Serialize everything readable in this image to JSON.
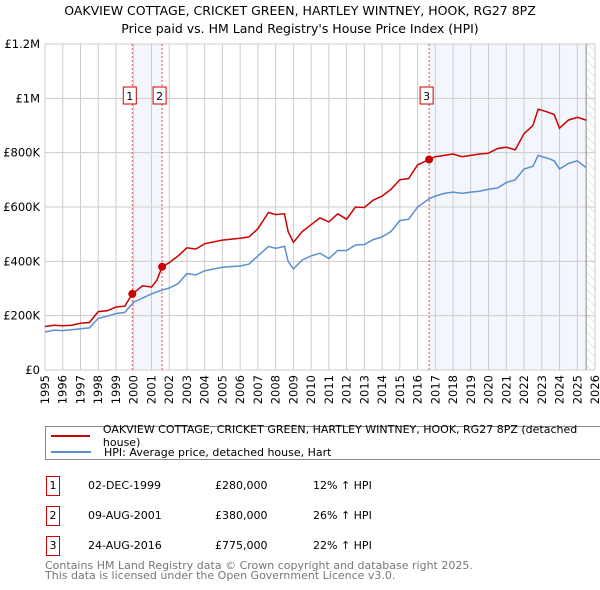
{
  "chart_data": {
    "type": "line",
    "title": "OAKVIEW COTTAGE, CRICKET GREEN, HARTLEY WINTNEY, HOOK, RG27 8PZ",
    "subtitle": "Price paid vs. HM Land Registry's House Price Index (HPI)",
    "xlim": [
      1995,
      2026
    ],
    "ylim": [
      0,
      1200000
    ],
    "x_ticks": [
      "1995",
      "1996",
      "1997",
      "1998",
      "1999",
      "2000",
      "2001",
      "2002",
      "2003",
      "2004",
      "2005",
      "2006",
      "2007",
      "2008",
      "2009",
      "2010",
      "2011",
      "2012",
      "2013",
      "2014",
      "2015",
      "2016",
      "2017",
      "2018",
      "2019",
      "2020",
      "2021",
      "2022",
      "2023",
      "2024",
      "2025",
      "2026"
    ],
    "y_ticks": [
      {
        "v": 0,
        "label": "£0"
      },
      {
        "v": 200000,
        "label": "£200K"
      },
      {
        "v": 400000,
        "label": "£400K"
      },
      {
        "v": 600000,
        "label": "£600K"
      },
      {
        "v": 800000,
        "label": "£800K"
      },
      {
        "v": 1000000,
        "label": "£1M"
      },
      {
        "v": 1200000,
        "label": "£1.2M"
      }
    ],
    "grid": true,
    "series": [
      {
        "name": "OAKVIEW COTTAGE, CRICKET GREEN, HARTLEY WINTNEY, HOOK, RG27 8PZ (detached house)",
        "color": "#cc0000",
        "x": [
          1995,
          1995.5,
          1996,
          1996.5,
          1997,
          1997.5,
          1998,
          1998.5,
          1999,
          1999.5,
          1999.92,
          2000.5,
          2001,
          2001.3,
          2001.6,
          2002,
          2002.5,
          2003,
          2003.5,
          2004,
          2005,
          2006,
          2006.5,
          2007,
          2007.6,
          2008,
          2008.5,
          2008.7,
          2009,
          2009.5,
          2010,
          2010.5,
          2011,
          2011.5,
          2012,
          2012.5,
          2013,
          2013.5,
          2014,
          2014.5,
          2015,
          2015.5,
          2016,
          2016.65,
          2017,
          2017.5,
          2018,
          2018.5,
          2019,
          2019.5,
          2020,
          2020.5,
          2021,
          2021.5,
          2022,
          2022.5,
          2022.8,
          2023.3,
          2023.7,
          2024,
          2024.5,
          2025,
          2025.5
        ],
        "y": [
          160000,
          165000,
          163000,
          165000,
          172000,
          175000,
          215000,
          218000,
          232000,
          235000,
          280000,
          310000,
          305000,
          330000,
          380000,
          395000,
          420000,
          450000,
          445000,
          465000,
          478000,
          485000,
          490000,
          520000,
          580000,
          572000,
          575000,
          510000,
          470000,
          510000,
          535000,
          560000,
          545000,
          575000,
          555000,
          600000,
          598000,
          625000,
          640000,
          665000,
          700000,
          705000,
          755000,
          775000,
          785000,
          790000,
          795000,
          785000,
          790000,
          795000,
          798000,
          815000,
          820000,
          810000,
          870000,
          900000,
          960000,
          950000,
          940000,
          890000,
          920000,
          930000,
          920000
        ]
      },
      {
        "name": "HPI: Average price, detached house, Hart",
        "color": "#5b8fd0",
        "x": [
          1995,
          1995.5,
          1996,
          1996.5,
          1997,
          1997.5,
          1998,
          1998.5,
          1999,
          1999.5,
          2000,
          2000.5,
          2001,
          2001.5,
          2002,
          2002.5,
          2003,
          2003.5,
          2004,
          2005,
          2006,
          2006.5,
          2007,
          2007.6,
          2008,
          2008.5,
          2008.7,
          2009,
          2009.5,
          2010,
          2010.5,
          2011,
          2011.5,
          2012,
          2012.5,
          2013,
          2013.5,
          2014,
          2014.5,
          2015,
          2015.5,
          2016,
          2016.65,
          2017,
          2017.5,
          2018,
          2018.5,
          2019,
          2019.5,
          2020,
          2020.5,
          2021,
          2021.5,
          2022,
          2022.5,
          2022.8,
          2023.3,
          2023.7,
          2024,
          2024.5,
          2025,
          2025.5
        ],
        "y": [
          140000,
          147000,
          145000,
          148000,
          152000,
          155000,
          190000,
          198000,
          208000,
          212000,
          250000,
          265000,
          280000,
          292000,
          302000,
          318000,
          355000,
          350000,
          365000,
          378000,
          383000,
          390000,
          420000,
          455000,
          448000,
          455000,
          400000,
          372000,
          405000,
          420000,
          430000,
          410000,
          440000,
          440000,
          460000,
          462000,
          480000,
          490000,
          510000,
          550000,
          555000,
          600000,
          630000,
          640000,
          650000,
          655000,
          650000,
          655000,
          658000,
          665000,
          670000,
          690000,
          700000,
          740000,
          750000,
          790000,
          780000,
          770000,
          740000,
          760000,
          770000,
          745000
        ]
      }
    ],
    "sales": [
      {
        "id": "1",
        "x": 1999.92,
        "y": 280000,
        "date": "02-DEC-1999",
        "price": "£280,000",
        "hpi": "12% ↑ HPI"
      },
      {
        "id": "2",
        "x": 2001.6,
        "y": 380000,
        "date": "09-AUG-2001",
        "price": "£380,000",
        "hpi": "26% ↑ HPI"
      },
      {
        "id": "3",
        "x": 2016.65,
        "y": 775000,
        "date": "24-AUG-2016",
        "price": "£775,000",
        "hpi": "22% ↑ HPI"
      }
    ],
    "forecast_start": 2025.5
  },
  "legend": {
    "property": "OAKVIEW COTTAGE, CRICKET GREEN, HARTLEY WINTNEY, HOOK, RG27 8PZ (detached house)",
    "hpi": "HPI: Average price, detached house, Hart"
  },
  "footer": {
    "line1": "Contains HM Land Registry data © Crown copyright and database right 2025.",
    "line2": "This data is licensed under the Open Government Licence v3.0."
  }
}
